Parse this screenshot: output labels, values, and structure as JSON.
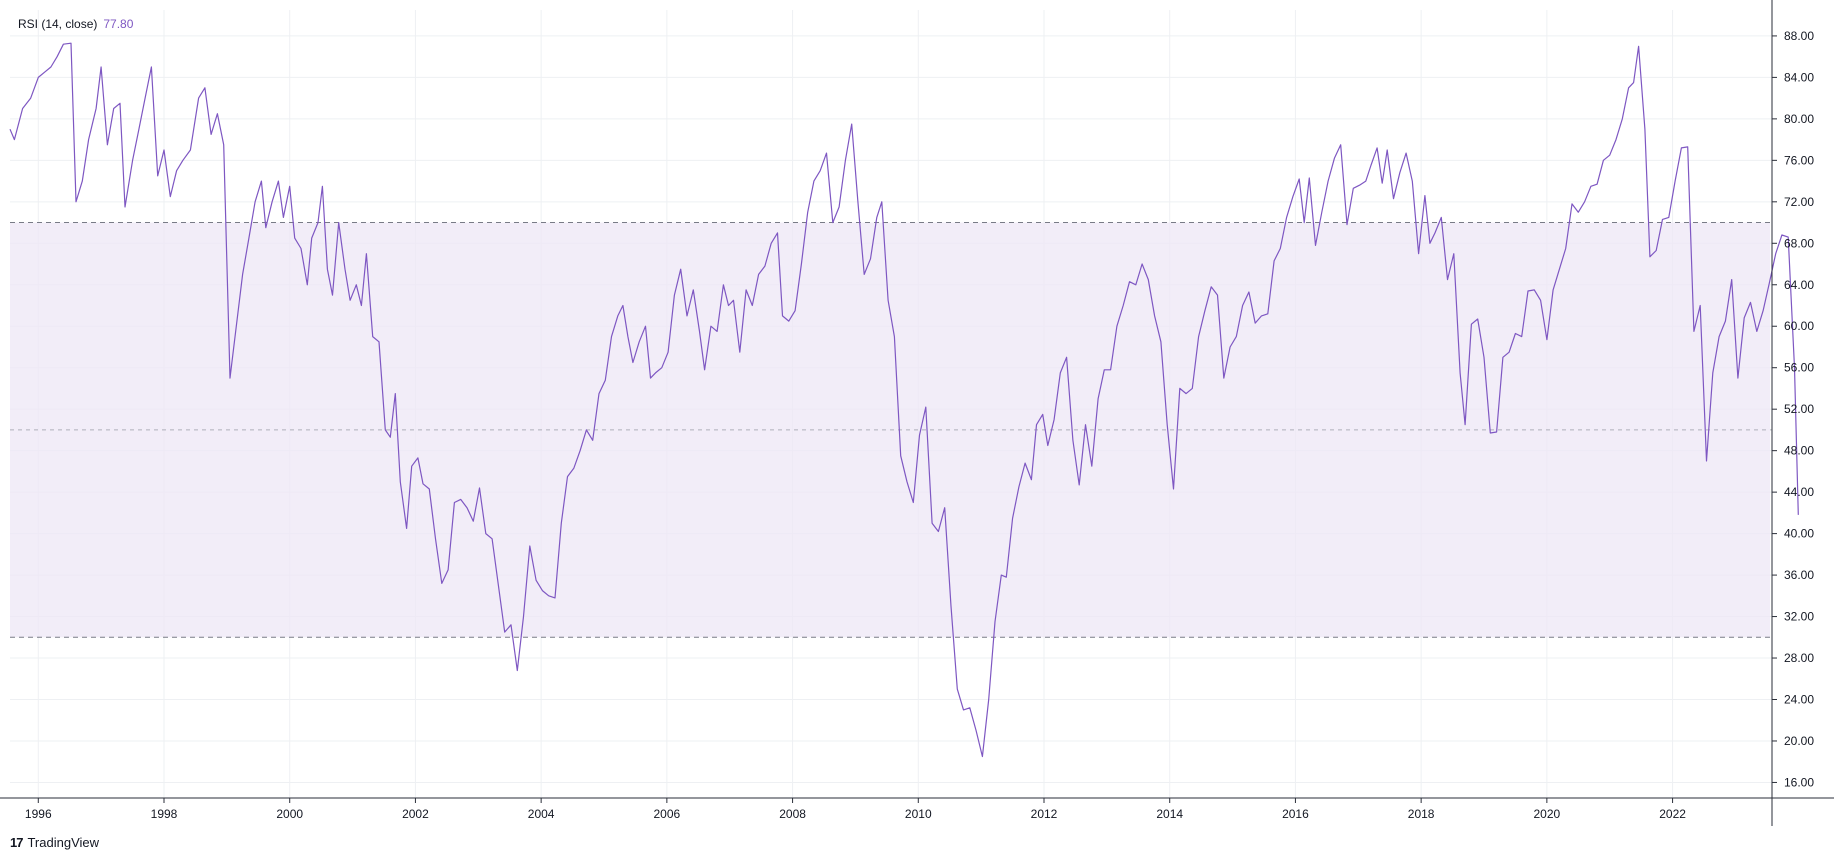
{
  "legend": {
    "label": "RSI (14, close)",
    "value": "77.80"
  },
  "brand": {
    "logo": "17",
    "text": "TradingView"
  },
  "colors": {
    "line": "#7e57c2",
    "band_fill": "#ede7f6",
    "grid": "#eef0f3",
    "dash": "#787b86",
    "axis": "#2a2e39"
  },
  "chart_data": {
    "type": "line",
    "title": "",
    "xlabel": "",
    "ylabel": "",
    "xlim": [
      1995.55,
      2023.55
    ],
    "ylim": [
      14.5,
      90.5
    ],
    "x_ticks": [
      "1996",
      "1998",
      "2000",
      "2002",
      "2004",
      "2006",
      "2008",
      "2010",
      "2012",
      "2014",
      "2016",
      "2018",
      "2020",
      "2022"
    ],
    "y_ticks": [
      "16.00",
      "20.00",
      "24.00",
      "28.00",
      "32.00",
      "36.00",
      "40.00",
      "44.00",
      "48.00",
      "52.00",
      "56.00",
      "60.00",
      "64.00",
      "68.00",
      "72.00",
      "76.00",
      "80.00",
      "84.00",
      "88.00"
    ],
    "bands": {
      "upper": 70,
      "middle": 50,
      "lower": 30
    },
    "grid": true,
    "series": [
      {
        "name": "RSI (14, close)",
        "points": [
          [
            1995.55,
            79
          ],
          [
            1995.62,
            78
          ],
          [
            1995.75,
            81
          ],
          [
            1995.88,
            82
          ],
          [
            1996.0,
            84
          ],
          [
            1996.1,
            84.5
          ],
          [
            1996.2,
            85
          ],
          [
            1996.3,
            86
          ],
          [
            1996.4,
            87.2
          ],
          [
            1996.52,
            87.3
          ],
          [
            1996.6,
            72
          ],
          [
            1996.7,
            74
          ],
          [
            1996.8,
            78
          ],
          [
            1996.92,
            81
          ],
          [
            1997.0,
            85
          ],
          [
            1997.1,
            77.5
          ],
          [
            1997.2,
            81
          ],
          [
            1997.3,
            81.5
          ],
          [
            1997.38,
            71.5
          ],
          [
            1997.5,
            76
          ],
          [
            1997.6,
            79
          ],
          [
            1997.7,
            82
          ],
          [
            1997.8,
            85
          ],
          [
            1997.9,
            74.5
          ],
          [
            1998.0,
            77
          ],
          [
            1998.1,
            72.5
          ],
          [
            1998.2,
            75
          ],
          [
            1998.3,
            76
          ],
          [
            1998.42,
            77
          ],
          [
            1998.55,
            82
          ],
          [
            1998.65,
            83
          ],
          [
            1998.75,
            78.5
          ],
          [
            1998.85,
            80.5
          ],
          [
            1998.95,
            77.5
          ],
          [
            1999.05,
            55
          ],
          [
            1999.15,
            60
          ],
          [
            1999.25,
            65
          ],
          [
            1999.35,
            68.5
          ],
          [
            1999.45,
            72
          ],
          [
            1999.55,
            74
          ],
          [
            1999.62,
            69.5
          ],
          [
            1999.72,
            72
          ],
          [
            1999.82,
            74
          ],
          [
            1999.9,
            70.5
          ],
          [
            2000.0,
            73.5
          ],
          [
            2000.08,
            68.5
          ],
          [
            2000.18,
            67.5
          ],
          [
            2000.28,
            64
          ],
          [
            2000.35,
            68.5
          ],
          [
            2000.45,
            70
          ],
          [
            2000.52,
            73.5
          ],
          [
            2000.6,
            65.5
          ],
          [
            2000.68,
            63
          ],
          [
            2000.78,
            70
          ],
          [
            2000.88,
            65.5
          ],
          [
            2000.96,
            62.5
          ],
          [
            2001.06,
            64
          ],
          [
            2001.14,
            62
          ],
          [
            2001.22,
            67
          ],
          [
            2001.32,
            59
          ],
          [
            2001.42,
            58.5
          ],
          [
            2001.52,
            50
          ],
          [
            2001.6,
            49.3
          ],
          [
            2001.68,
            53.5
          ],
          [
            2001.76,
            45
          ],
          [
            2001.86,
            40.5
          ],
          [
            2001.94,
            46.5
          ],
          [
            2002.04,
            47.3
          ],
          [
            2002.12,
            44.8
          ],
          [
            2002.22,
            44.3
          ],
          [
            2002.32,
            39.5
          ],
          [
            2002.42,
            35.2
          ],
          [
            2002.52,
            36.5
          ],
          [
            2002.62,
            43
          ],
          [
            2002.72,
            43.3
          ],
          [
            2002.82,
            42.5
          ],
          [
            2002.92,
            41.2
          ],
          [
            2003.02,
            44.4
          ],
          [
            2003.12,
            40
          ],
          [
            2003.22,
            39.5
          ],
          [
            2003.32,
            35
          ],
          [
            2003.42,
            30.5
          ],
          [
            2003.52,
            31.2
          ],
          [
            2003.62,
            26.8
          ],
          [
            2003.72,
            32
          ],
          [
            2003.82,
            38.8
          ],
          [
            2003.92,
            35.5
          ],
          [
            2004.02,
            34.5
          ],
          [
            2004.12,
            34
          ],
          [
            2004.22,
            33.8
          ],
          [
            2004.32,
            41
          ],
          [
            2004.42,
            45.5
          ],
          [
            2004.52,
            46.3
          ],
          [
            2004.62,
            48
          ],
          [
            2004.72,
            50
          ],
          [
            2004.82,
            49
          ],
          [
            2004.92,
            53.5
          ],
          [
            2005.02,
            54.8
          ],
          [
            2005.12,
            59
          ],
          [
            2005.22,
            61
          ],
          [
            2005.3,
            62
          ],
          [
            2005.38,
            59
          ],
          [
            2005.46,
            56.5
          ],
          [
            2005.56,
            58.5
          ],
          [
            2005.66,
            60
          ],
          [
            2005.74,
            55
          ],
          [
            2005.82,
            55.5
          ],
          [
            2005.92,
            56
          ],
          [
            2006.02,
            57.5
          ],
          [
            2006.12,
            63
          ],
          [
            2006.22,
            65.5
          ],
          [
            2006.32,
            61
          ],
          [
            2006.42,
            63.5
          ],
          [
            2006.52,
            59.5
          ],
          [
            2006.6,
            55.8
          ],
          [
            2006.7,
            60
          ],
          [
            2006.8,
            59.5
          ],
          [
            2006.9,
            64
          ],
          [
            2006.98,
            62
          ],
          [
            2007.06,
            62.5
          ],
          [
            2007.16,
            57.5
          ],
          [
            2007.26,
            63.5
          ],
          [
            2007.36,
            62
          ],
          [
            2007.46,
            65
          ],
          [
            2007.56,
            65.8
          ],
          [
            2007.66,
            68
          ],
          [
            2007.76,
            69
          ],
          [
            2007.84,
            61
          ],
          [
            2007.94,
            60.5
          ],
          [
            2008.04,
            61.5
          ],
          [
            2008.14,
            66
          ],
          [
            2008.24,
            71
          ],
          [
            2008.34,
            74
          ],
          [
            2008.44,
            75
          ],
          [
            2008.54,
            76.7
          ],
          [
            2008.64,
            70
          ],
          [
            2008.74,
            71.5
          ],
          [
            2008.84,
            76
          ],
          [
            2008.94,
            79.5
          ],
          [
            2009.04,
            72
          ],
          [
            2009.14,
            65
          ],
          [
            2009.24,
            66.5
          ],
          [
            2009.34,
            70.5
          ],
          [
            2009.42,
            72
          ],
          [
            2009.52,
            62.5
          ],
          [
            2009.62,
            59
          ],
          [
            2009.72,
            47.5
          ],
          [
            2009.82,
            45
          ],
          [
            2009.92,
            43
          ],
          [
            2010.02,
            49.5
          ],
          [
            2010.12,
            52.2
          ],
          [
            2010.22,
            41
          ],
          [
            2010.32,
            40.2
          ],
          [
            2010.42,
            42.5
          ],
          [
            2010.52,
            33
          ],
          [
            2010.62,
            25
          ],
          [
            2010.72,
            23
          ],
          [
            2010.82,
            23.2
          ],
          [
            2010.92,
            21
          ],
          [
            2011.02,
            18.5
          ],
          [
            2011.12,
            24
          ],
          [
            2011.22,
            31.5
          ],
          [
            2011.32,
            36
          ],
          [
            2011.4,
            35.8
          ],
          [
            2011.5,
            41.5
          ],
          [
            2011.6,
            44.5
          ],
          [
            2011.7,
            46.8
          ],
          [
            2011.8,
            45.2
          ],
          [
            2011.88,
            50.5
          ],
          [
            2011.98,
            51.5
          ],
          [
            2012.06,
            48.5
          ],
          [
            2012.16,
            51
          ],
          [
            2012.26,
            55.5
          ],
          [
            2012.36,
            57
          ],
          [
            2012.46,
            49
          ],
          [
            2012.56,
            44.7
          ],
          [
            2012.66,
            50.5
          ],
          [
            2012.76,
            46.5
          ],
          [
            2012.86,
            53
          ],
          [
            2012.96,
            55.8
          ],
          [
            2013.06,
            55.8
          ],
          [
            2013.16,
            60
          ],
          [
            2013.26,
            62
          ],
          [
            2013.36,
            64.3
          ],
          [
            2013.46,
            64
          ],
          [
            2013.56,
            66
          ],
          [
            2013.66,
            64.5
          ],
          [
            2013.76,
            61
          ],
          [
            2013.86,
            58.5
          ],
          [
            2013.96,
            50.5
          ],
          [
            2014.06,
            44.3
          ],
          [
            2014.16,
            54
          ],
          [
            2014.26,
            53.5
          ],
          [
            2014.36,
            54
          ],
          [
            2014.46,
            59
          ],
          [
            2014.56,
            61.5
          ],
          [
            2014.66,
            63.8
          ],
          [
            2014.76,
            63
          ],
          [
            2014.86,
            55
          ],
          [
            2014.96,
            58
          ],
          [
            2015.06,
            59
          ],
          [
            2015.16,
            62
          ],
          [
            2015.26,
            63.3
          ],
          [
            2015.36,
            60.3
          ],
          [
            2015.46,
            61
          ],
          [
            2015.56,
            61.2
          ],
          [
            2015.66,
            66.3
          ],
          [
            2015.76,
            67.5
          ],
          [
            2015.86,
            70.5
          ],
          [
            2015.96,
            72.5
          ],
          [
            2016.06,
            74.2
          ],
          [
            2016.14,
            70
          ],
          [
            2016.22,
            74.3
          ],
          [
            2016.32,
            67.8
          ],
          [
            2016.42,
            71
          ],
          [
            2016.52,
            74
          ],
          [
            2016.62,
            76.2
          ],
          [
            2016.72,
            77.5
          ],
          [
            2016.82,
            69.8
          ],
          [
            2016.92,
            73.3
          ],
          [
            2017.02,
            73.6
          ],
          [
            2017.12,
            74
          ],
          [
            2017.2,
            75.5
          ],
          [
            2017.3,
            77.2
          ],
          [
            2017.38,
            73.8
          ],
          [
            2017.46,
            77
          ],
          [
            2017.56,
            72.3
          ],
          [
            2017.66,
            74.8
          ],
          [
            2017.76,
            76.7
          ],
          [
            2017.86,
            74
          ],
          [
            2017.96,
            67
          ],
          [
            2018.06,
            72.6
          ],
          [
            2018.14,
            68
          ],
          [
            2018.22,
            69
          ],
          [
            2018.32,
            70.5
          ],
          [
            2018.42,
            64.5
          ],
          [
            2018.52,
            67
          ],
          [
            2018.62,
            55.5
          ],
          [
            2018.7,
            50.5
          ],
          [
            2018.8,
            60.2
          ],
          [
            2018.9,
            60.7
          ],
          [
            2019.0,
            57
          ],
          [
            2019.1,
            49.7
          ],
          [
            2019.2,
            49.8
          ],
          [
            2019.3,
            57
          ],
          [
            2019.4,
            57.5
          ],
          [
            2019.5,
            59.3
          ],
          [
            2019.6,
            59
          ],
          [
            2019.7,
            63.4
          ],
          [
            2019.8,
            63.5
          ],
          [
            2019.9,
            62.5
          ],
          [
            2020.0,
            58.7
          ],
          [
            2020.1,
            63.5
          ],
          [
            2020.2,
            65.5
          ],
          [
            2020.3,
            67.5
          ],
          [
            2020.4,
            71.8
          ],
          [
            2020.5,
            71
          ],
          [
            2020.6,
            72
          ],
          [
            2020.7,
            73.5
          ],
          [
            2020.8,
            73.7
          ],
          [
            2020.9,
            76
          ],
          [
            2021.0,
            76.5
          ],
          [
            2021.1,
            78
          ],
          [
            2021.2,
            80
          ],
          [
            2021.3,
            83
          ],
          [
            2021.38,
            83.5
          ],
          [
            2021.46,
            87
          ],
          [
            2021.56,
            79
          ],
          [
            2021.64,
            66.7
          ],
          [
            2021.74,
            67.3
          ],
          [
            2021.84,
            70.3
          ],
          [
            2021.94,
            70.5
          ],
          [
            2022.04,
            74
          ],
          [
            2022.14,
            77.2
          ],
          [
            2022.24,
            77.3
          ],
          [
            2022.34,
            59.5
          ],
          [
            2022.44,
            62
          ],
          [
            2022.54,
            47
          ],
          [
            2022.64,
            55.5
          ],
          [
            2022.74,
            59
          ],
          [
            2022.84,
            60.5
          ],
          [
            2022.94,
            64.5
          ],
          [
            2023.04,
            55
          ],
          [
            2023.14,
            60.8
          ],
          [
            2023.24,
            62.3
          ],
          [
            2023.34,
            59.5
          ],
          [
            2023.44,
            61.5
          ],
          [
            2023.54,
            64.2
          ],
          [
            2023.64,
            67
          ],
          [
            2023.74,
            68.8
          ],
          [
            2023.84,
            68.6
          ],
          [
            2023.94,
            56
          ],
          [
            2024.0,
            41.8
          ]
        ]
      }
    ]
  }
}
